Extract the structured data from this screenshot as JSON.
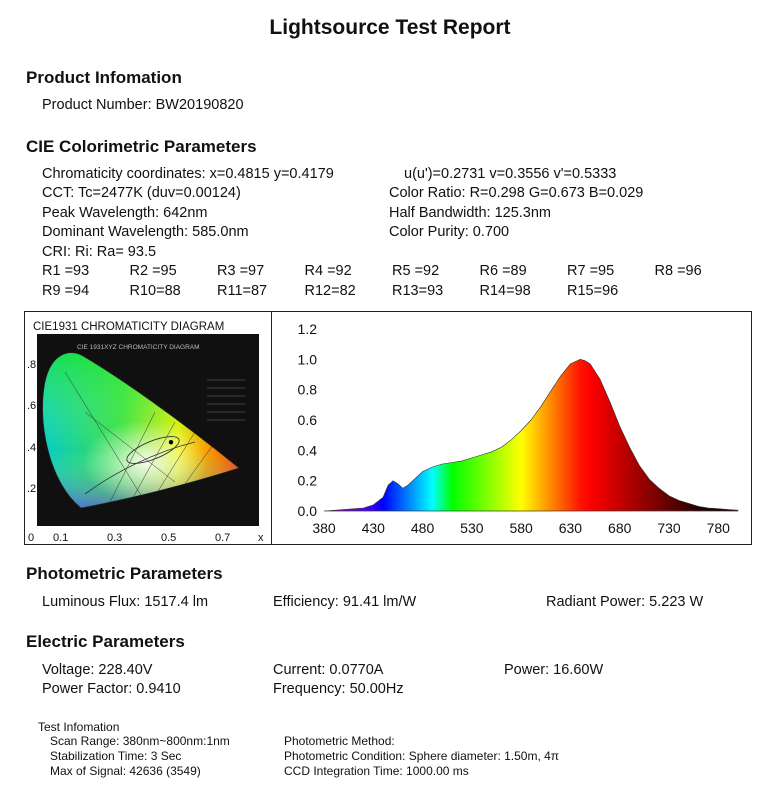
{
  "report_title": "Lightsource Test Report",
  "product": {
    "heading": "Product Infomation",
    "number_label": "Product Number:",
    "number_value": "BW20190820"
  },
  "cie": {
    "heading": "CIE Colorimetric Parameters",
    "chromaticity": "Chromaticity coordinates: x=0.4815 y=0.4179",
    "uv": "u(u')=0.2731 v=0.3556 v'=0.5333",
    "cct": "CCT: Tc=2477K (duv=0.00124)",
    "color_ratio": "Color Ratio: R=0.298  G=0.673  B=0.029",
    "peak": "Peak Wavelength: 642nm",
    "half_bw": "Half Bandwidth: 125.3nm",
    "dominant": "Dominant Wavelength: 585.0nm",
    "purity": "Color Purity: 0.700",
    "cri_line": "CRI: Ri: Ra= 93.5",
    "ri": [
      "R1 =93",
      "R2 =95",
      "R3 =97",
      "R4 =92",
      "R5 =92",
      "R6 =89",
      "R7 =95",
      "R8 =96",
      "R9 =94",
      "R10=88",
      "R11=87",
      "R12=82",
      "R13=93",
      "R14=98",
      "R15=96"
    ]
  },
  "cie_diagram": {
    "title": "CIE1931 CHROMATICITY DIAGRAM",
    "inner_title": "CIE 1931XYZ CHROMATICITY DIAGRAM",
    "y_ticks": [
      ".8",
      ".6",
      ".4",
      ".2"
    ],
    "x_ticks": [
      "0",
      "0.1",
      "0.3",
      "0.5",
      "0.7"
    ],
    "x_axis_label": "x",
    "point": {
      "x": 0.4815,
      "y": 0.4179
    }
  },
  "chart_data": {
    "type": "area",
    "xlim": [
      380,
      800
    ],
    "ylim": [
      0,
      1.2
    ],
    "x_ticks": [
      380,
      430,
      480,
      530,
      580,
      630,
      680,
      730,
      780
    ],
    "y_ticks": [
      "0.0",
      "0.2",
      "0.4",
      "0.6",
      "0.8",
      "1.0",
      "1.2"
    ],
    "x": [
      380,
      400,
      420,
      430,
      440,
      445,
      450,
      455,
      460,
      465,
      470,
      480,
      490,
      500,
      510,
      520,
      530,
      540,
      550,
      560,
      570,
      580,
      590,
      600,
      610,
      620,
      630,
      640,
      645,
      650,
      660,
      670,
      680,
      690,
      700,
      710,
      720,
      730,
      740,
      750,
      760,
      770,
      780,
      790,
      800
    ],
    "values": [
      0.0,
      0.01,
      0.02,
      0.04,
      0.09,
      0.17,
      0.2,
      0.18,
      0.15,
      0.17,
      0.2,
      0.26,
      0.29,
      0.31,
      0.32,
      0.33,
      0.35,
      0.37,
      0.39,
      0.42,
      0.47,
      0.53,
      0.6,
      0.69,
      0.79,
      0.89,
      0.97,
      1.0,
      0.99,
      0.97,
      0.87,
      0.72,
      0.56,
      0.42,
      0.3,
      0.21,
      0.15,
      0.1,
      0.07,
      0.05,
      0.03,
      0.02,
      0.015,
      0.01,
      0.005
    ]
  },
  "photometric": {
    "heading": "Photometric Parameters",
    "flux": "Luminous Flux: 1517.4 lm",
    "efficiency": "Efficiency: 91.41 lm/W",
    "radiant": "Radiant Power: 5.223  W"
  },
  "electric": {
    "heading": "Electric Parameters",
    "voltage": "Voltage: 228.40V",
    "current": "Current: 0.0770A",
    "power": "Power: 16.60W",
    "pf": "Power Factor: 0.9410",
    "freq": "Frequency: 50.00Hz"
  },
  "test_info": {
    "heading": "Test Infomation",
    "scan": "Scan Range: 380nm~800nm:1nm",
    "stab": "Stabilization Time: 3 Sec",
    "maxsig": "Max of Signal: 42636 (3549)",
    "method": "Photometric Method:",
    "condition": "Photometric Condition: Sphere diameter: 1.50m, 4π",
    "ccd": "CCD Integration Time: 1000.00 ms"
  }
}
